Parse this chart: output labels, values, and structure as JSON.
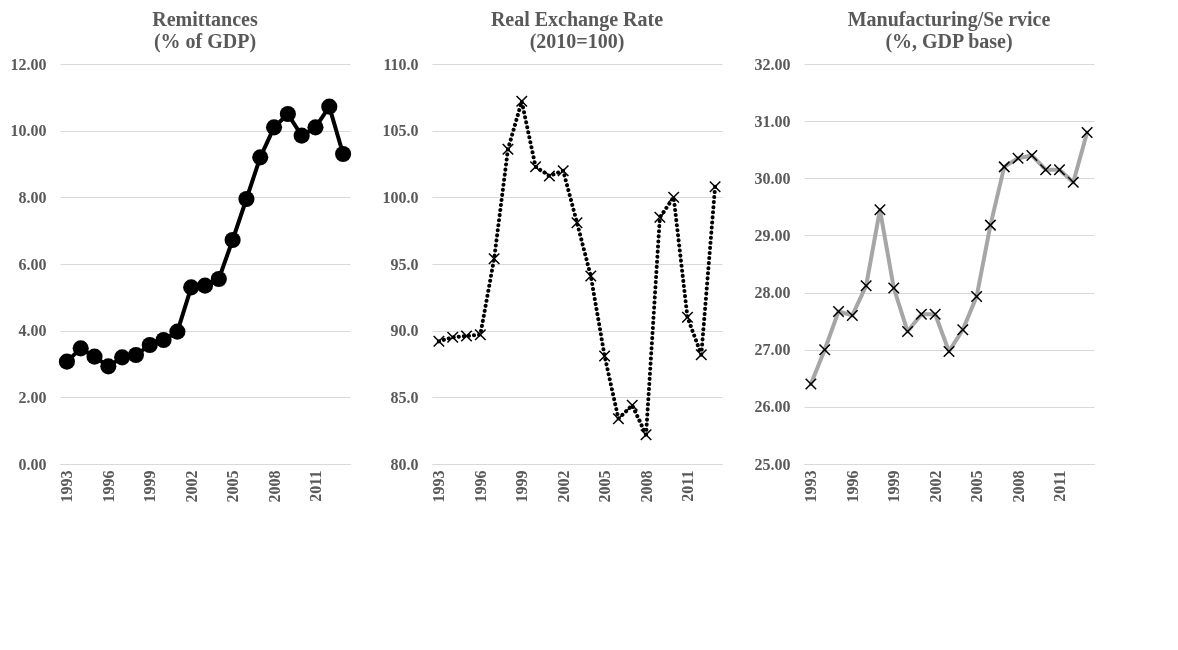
{
  "chart_data": [
    {
      "type": "line",
      "title": [
        "Remittances",
        "(% of GDP)"
      ],
      "categories": [
        "1993",
        null,
        null,
        "1996",
        null,
        null,
        "1999",
        null,
        null,
        "2002",
        null,
        null,
        "2005",
        null,
        null,
        "2008",
        null,
        null,
        "2011",
        null,
        null
      ],
      "series": [
        {
          "color": "#000000",
          "values": [
            3.07,
            3.47,
            3.22,
            2.93,
            3.2,
            3.27,
            3.57,
            3.72,
            3.97,
            5.3,
            5.35,
            5.55,
            6.72,
            7.95,
            9.2,
            10.1,
            10.5,
            9.85,
            10.1,
            10.72,
            9.3
          ]
        }
      ],
      "ylim": [
        0,
        12
      ],
      "yticks": [
        {
          "value": 0,
          "label": "0.00"
        },
        {
          "value": 2,
          "label": "2.00"
        },
        {
          "value": 4,
          "label": "4.00"
        },
        {
          "value": 6,
          "label": "6.00"
        },
        {
          "value": 8,
          "label": "8.00"
        },
        {
          "value": 10,
          "label": "10.00"
        },
        {
          "value": 12,
          "label": "12.00"
        }
      ],
      "grid": "y",
      "marker": "circle",
      "line_style": "solid"
    },
    {
      "type": "line",
      "title": [
        "Real Exchange  Rate",
        "(2010=100)"
      ],
      "categories": [
        "1993",
        null,
        null,
        "1996",
        null,
        null,
        "1999",
        null,
        null,
        "2002",
        null,
        null,
        "2005",
        null,
        null,
        "2008",
        null,
        null,
        "2011",
        null,
        null
      ],
      "series": [
        {
          "color": "#000000",
          "values": [
            89.2,
            89.5,
            89.6,
            89.7,
            95.4,
            103.6,
            107.2,
            102.3,
            101.6,
            102.0,
            98.1,
            94.1,
            88.1,
            83.4,
            84.4,
            82.2,
            98.5,
            100.0,
            91.0,
            88.2,
            100.8
          ]
        }
      ],
      "ylim": [
        80,
        110
      ],
      "yticks": [
        {
          "value": 80,
          "label": "80.0"
        },
        {
          "value": 85,
          "label": "85.0"
        },
        {
          "value": 90,
          "label": "90.0"
        },
        {
          "value": 95,
          "label": "95.0"
        },
        {
          "value": 100,
          "label": "100.0"
        },
        {
          "value": 105,
          "label": "105.0"
        },
        {
          "value": 110,
          "label": "110.0"
        }
      ],
      "grid": "y",
      "marker": "cross",
      "line_style": "dotted"
    },
    {
      "type": "line",
      "title": [
        "Manufacturing/Se rvice",
        "(%, GDP base)"
      ],
      "categories": [
        "1993",
        null,
        null,
        "1996",
        null,
        null,
        "1999",
        null,
        null,
        "2002",
        null,
        null,
        "2005",
        null,
        null,
        "2008",
        null,
        null,
        "2011",
        null,
        null
      ],
      "series": [
        {
          "color": "#a6a6a6",
          "values": [
            26.4,
            27.0,
            27.67,
            27.6,
            28.12,
            29.45,
            28.08,
            27.32,
            27.62,
            27.62,
            26.97,
            27.35,
            27.93,
            29.18,
            30.2,
            30.35,
            30.4,
            30.15,
            30.15,
            29.93,
            30.8
          ]
        }
      ],
      "ylim": [
        25,
        32
      ],
      "yticks": [
        {
          "value": 25,
          "label": "25.00"
        },
        {
          "value": 26,
          "label": "26.00"
        },
        {
          "value": 27,
          "label": "27.00"
        },
        {
          "value": 28,
          "label": "28.00"
        },
        {
          "value": 29,
          "label": "29.00"
        },
        {
          "value": 30,
          "label": "30.00"
        },
        {
          "value": 31,
          "label": "31.00"
        },
        {
          "value": 32,
          "label": "32.00"
        }
      ],
      "grid": "y",
      "marker": "cross",
      "line_style": "solid"
    }
  ]
}
